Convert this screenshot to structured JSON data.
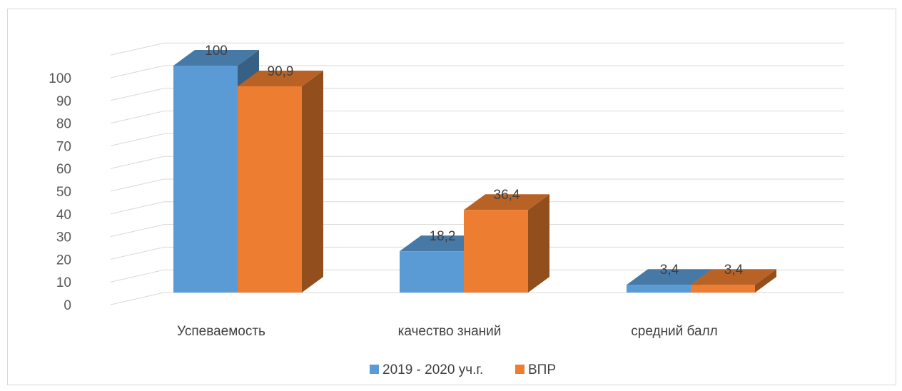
{
  "chart_data": {
    "type": "bar",
    "style": "3d-clustered-column",
    "categories": [
      "Успеваемость",
      "качество знаний",
      "средний балл"
    ],
    "series": [
      {
        "name": "2019 - 2020 уч.г.",
        "values": [
          100,
          18.2,
          3.4
        ],
        "labels": [
          "100",
          "18,2",
          "3,4"
        ],
        "color": "#5b9bd5"
      },
      {
        "name": "ВПР",
        "values": [
          90.9,
          36.4,
          3.4
        ],
        "labels": [
          "90,9",
          "36,4",
          "3,4"
        ],
        "color": "#ed7d31"
      }
    ],
    "y_ticks": [
      "0",
      "10",
      "20",
      "30",
      "40",
      "50",
      "60",
      "70",
      "80",
      "90",
      "100"
    ],
    "ylim": [
      0,
      110
    ],
    "grid": true,
    "legend_position": "bottom"
  }
}
